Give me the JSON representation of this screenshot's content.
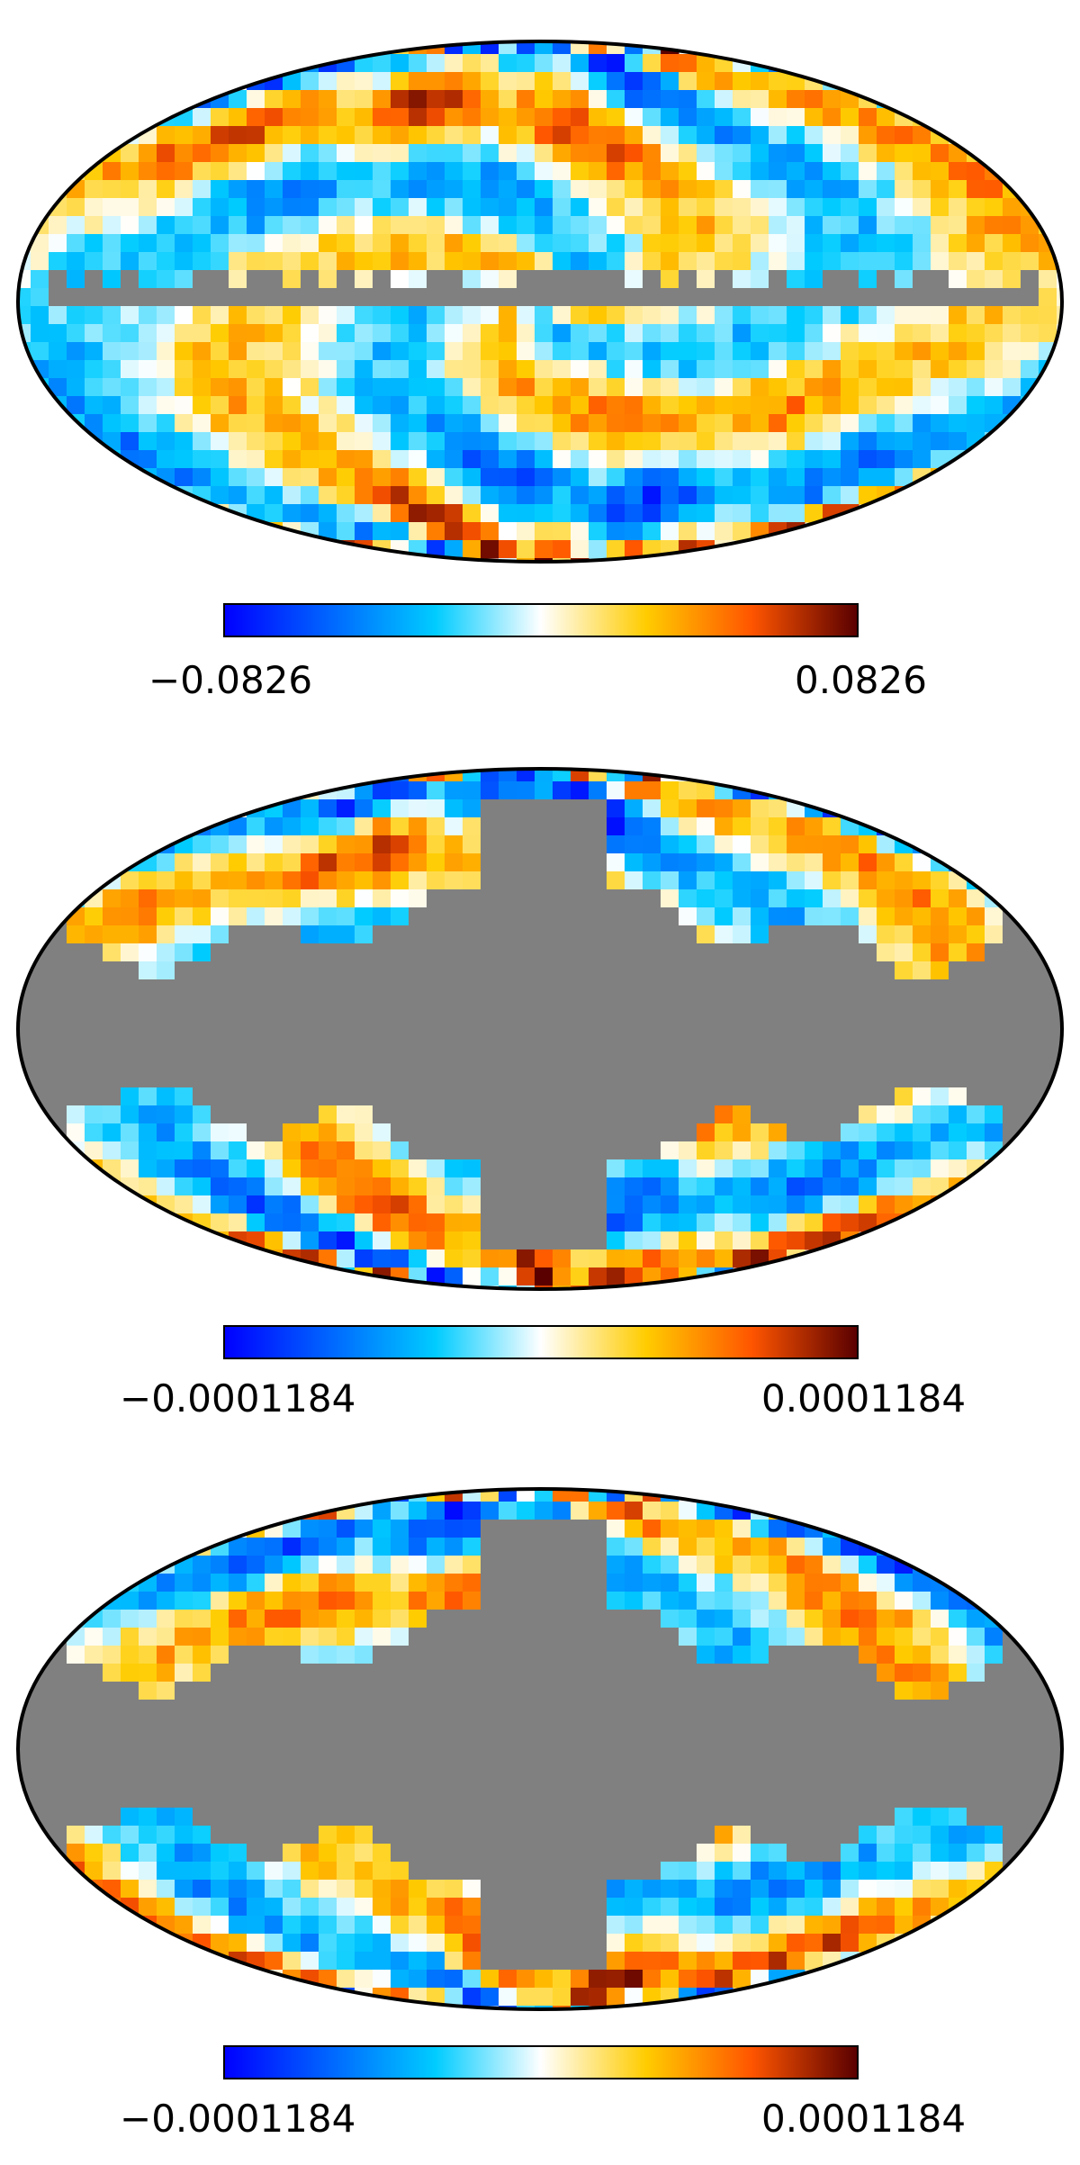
{
  "colors": {
    "masked": "#808080",
    "outline": "#000000",
    "background": "#ffffff",
    "colormap": [
      "#0000ff",
      "#0066ff",
      "#00ccff",
      "#ffffff",
      "#ffcc00",
      "#ff5500",
      "#5a0000"
    ]
  },
  "maps": [
    {
      "pattern": "full-sky-with-galactic-plane-mask",
      "mask_coverage": "narrow-band",
      "colorbar": {
        "min_label": "−0.0826",
        "max_label": "0.0826"
      }
    },
    {
      "pattern": "masked-sky",
      "mask_coverage": "wide-mask",
      "colorbar": {
        "min_label": "−0.0001184",
        "max_label": "0.0001184"
      }
    },
    {
      "pattern": "masked-sky",
      "mask_coverage": "wide-mask",
      "colorbar": {
        "min_label": "−0.0001184",
        "max_label": "0.0001184"
      }
    }
  ]
}
